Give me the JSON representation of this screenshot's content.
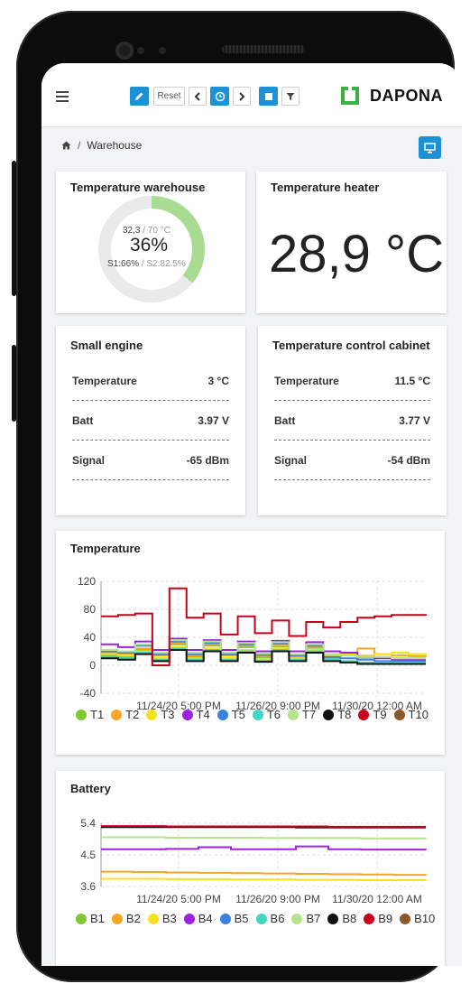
{
  "toolbar": {
    "reset_label": "Reset",
    "brand": "DAPONA",
    "accent": "#1e90d6",
    "logo_color": "#3cb043"
  },
  "breadcrumb": {
    "home_icon": "home-icon",
    "page": "Warehouse"
  },
  "cards": {
    "warehouse": {
      "title": "Temperature warehouse",
      "current": "32,3",
      "limit": "/ 70 °C",
      "percent_label": "36%",
      "percent": 0.36,
      "s1": "S1:66%",
      "s2": "/ S2:82.5%"
    },
    "heater": {
      "title": "Temperature heater",
      "value": "28,9 °C"
    },
    "engine": {
      "title": "Small engine",
      "rows": [
        {
          "k": "Temperature",
          "v": "3 °C"
        },
        {
          "k": "Batt",
          "v": "3.97 V"
        },
        {
          "k": "Signal",
          "v": "-65 dBm"
        }
      ]
    },
    "cabinet": {
      "title": "Temperature control cabinet",
      "rows": [
        {
          "k": "Temperature",
          "v": "11.5 °C"
        },
        {
          "k": "Batt",
          "v": "3.77 V"
        },
        {
          "k": "Signal",
          "v": "-54 dBm"
        }
      ]
    }
  },
  "chart_data": [
    {
      "type": "line",
      "title": "Temperature",
      "ylim": [
        -40,
        120
      ],
      "yticks": [
        120,
        80,
        40,
        0,
        -40
      ],
      "xticks": [
        "11/24/20 5:00 PM",
        "11/26/20 9:00 PM",
        "11/30/20 12:00 AM"
      ],
      "grid": true,
      "legend": "bottom",
      "series": [
        {
          "name": "T1",
          "color": "#7ec832",
          "values": [
            14,
            12,
            22,
            10,
            30,
            12,
            28,
            10,
            26,
            11,
            27,
            10,
            25,
            10,
            14,
            11,
            12,
            10,
            10,
            10
          ]
        },
        {
          "name": "T2",
          "color": "#f5a623",
          "values": [
            18,
            16,
            24,
            14,
            32,
            14,
            30,
            14,
            28,
            13,
            28,
            12,
            26,
            14,
            18,
            24,
            16,
            14,
            13,
            12
          ]
        },
        {
          "name": "T3",
          "color": "#f5e11e",
          "values": [
            16,
            14,
            20,
            10,
            26,
            10,
            24,
            10,
            22,
            9,
            24,
            10,
            22,
            14,
            16,
            14,
            16,
            18,
            16,
            15
          ]
        },
        {
          "name": "T4",
          "color": "#a020e0",
          "values": [
            30,
            26,
            34,
            22,
            38,
            22,
            36,
            22,
            34,
            20,
            35,
            20,
            33,
            20,
            18,
            12,
            10,
            8,
            8,
            8
          ]
        },
        {
          "name": "T5",
          "color": "#3a82e0",
          "values": [
            20,
            18,
            28,
            16,
            34,
            16,
            32,
            16,
            30,
            15,
            31,
            14,
            28,
            12,
            10,
            8,
            6,
            6,
            6,
            6
          ]
        },
        {
          "name": "T6",
          "color": "#40d6c0",
          "values": [
            12,
            10,
            18,
            8,
            24,
            8,
            22,
            8,
            20,
            7,
            22,
            8,
            20,
            8,
            6,
            4,
            4,
            3,
            3,
            3
          ]
        },
        {
          "name": "T7",
          "color": "#b6e48c",
          "values": [
            22,
            20,
            30,
            18,
            36,
            18,
            34,
            18,
            32,
            17,
            33,
            16,
            30,
            16,
            14,
            12,
            12,
            10,
            10,
            10
          ]
        },
        {
          "name": "T8",
          "color": "#111111",
          "values": [
            10,
            8,
            16,
            6,
            22,
            6,
            20,
            6,
            18,
            5,
            20,
            6,
            18,
            6,
            4,
            2,
            2,
            2,
            2,
            2
          ]
        },
        {
          "name": "T9",
          "color": "#c8001e",
          "values": [
            70,
            72,
            74,
            0,
            110,
            68,
            74,
            44,
            70,
            46,
            64,
            42,
            62,
            54,
            62,
            68,
            70,
            72,
            72,
            71
          ]
        },
        {
          "name": "T10",
          "color": "#8b5a2b",
          "values": []
        }
      ]
    },
    {
      "type": "line",
      "title": "Battery",
      "ylim": [
        3.6,
        5.4
      ],
      "yticks": [
        5.4,
        4.5,
        3.6
      ],
      "xticks": [
        "11/24/20 5:00 PM",
        "11/26/20 9:00 PM",
        "11/30/20 12:00 AM"
      ],
      "grid": true,
      "legend": "bottom",
      "series": [
        {
          "name": "B1",
          "color": "#7ec832",
          "values": []
        },
        {
          "name": "B2",
          "color": "#f5a623",
          "values": [
            4.02,
            4.01,
            4.0,
            3.99,
            3.98,
            3.97,
            3.96,
            3.95,
            3.94,
            3.93,
            3.92
          ]
        },
        {
          "name": "B3",
          "color": "#f5e11e",
          "values": [
            3.82,
            3.82,
            3.81,
            3.81,
            3.8,
            3.8,
            3.79,
            3.79,
            3.78,
            3.78,
            3.77
          ]
        },
        {
          "name": "B4",
          "color": "#a020e0",
          "values": [
            4.66,
            4.66,
            4.67,
            4.72,
            4.66,
            4.66,
            4.74,
            4.66,
            4.65,
            4.65,
            4.64
          ]
        },
        {
          "name": "B5",
          "color": "#3a82e0",
          "values": []
        },
        {
          "name": "B6",
          "color": "#40d6c0",
          "values": []
        },
        {
          "name": "B7",
          "color": "#b6e48c",
          "values": [
            5.0,
            5.0,
            4.99,
            4.99,
            4.99,
            4.98,
            4.98,
            4.98,
            4.97,
            4.97,
            4.96
          ]
        },
        {
          "name": "B8",
          "color": "#111111",
          "values": [
            5.29,
            5.29,
            5.29,
            5.29,
            5.29,
            5.29,
            5.28,
            5.28,
            5.28,
            5.28,
            5.28
          ]
        },
        {
          "name": "B9",
          "color": "#c8001e",
          "values": [
            5.32,
            5.32,
            5.31,
            5.31,
            5.31,
            5.31,
            5.31,
            5.3,
            5.3,
            5.3,
            5.3
          ]
        },
        {
          "name": "B10",
          "color": "#8b5a2b",
          "values": []
        }
      ]
    }
  ]
}
